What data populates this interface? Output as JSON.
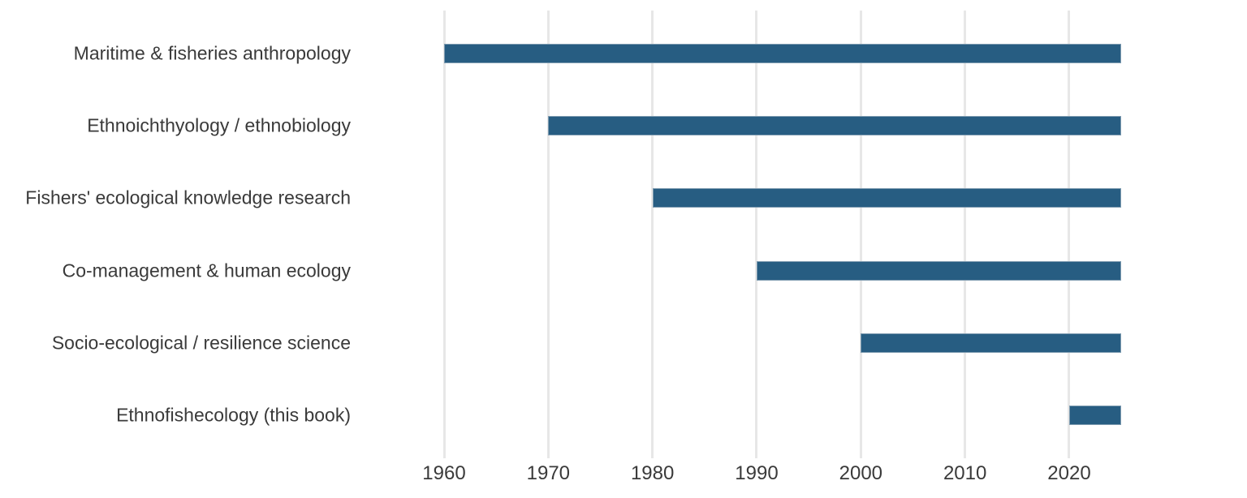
{
  "chart_data": {
    "type": "bar",
    "orientation": "horizontal",
    "title": "",
    "xlabel": "",
    "ylabel": "",
    "categories": [
      "Maritime & fisheries anthropology",
      "Ethnoichthyology / ethnobiology",
      "Fishers' ecological knowledge research",
      "Co-management & human ecology",
      "Socio-ecological / resilience science",
      "Ethnofishecology (this book)"
    ],
    "bars": [
      {
        "label": "Maritime & fisheries anthropology",
        "start": 1960,
        "end": 2025
      },
      {
        "label": "Ethnoichthyology / ethnobiology",
        "start": 1970,
        "end": 2025
      },
      {
        "label": "Fishers' ecological knowledge research",
        "start": 1980,
        "end": 2025
      },
      {
        "label": "Co-management & human ecology",
        "start": 1990,
        "end": 2025
      },
      {
        "label": "Socio-ecological / resilience science",
        "start": 2000,
        "end": 2025
      },
      {
        "label": "Ethnofishecology (this book)",
        "start": 2020,
        "end": 2025
      }
    ],
    "x_ticks": [
      "1960",
      "1970",
      "1980",
      "1990",
      "2000",
      "2010",
      "2020"
    ],
    "x_tick_values": [
      1960,
      1970,
      1980,
      1990,
      2000,
      2010,
      2020
    ],
    "xlim": [
      1955,
      2037
    ],
    "grid": "vertical-only",
    "legend": false,
    "colors": {
      "bar_fill": "#275D82",
      "bar_edge": "#7E9BB0",
      "gridline": "#E7E7E7",
      "text": "#3A3A3A",
      "background": "#FFFFFF"
    }
  }
}
